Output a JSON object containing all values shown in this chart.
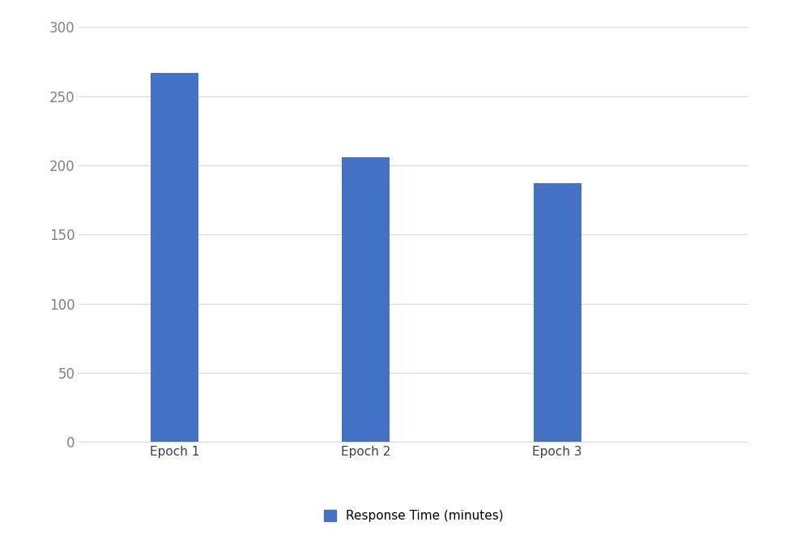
{
  "categories": [
    "Epoch 1",
    "Epoch 2",
    "Epoch 3"
  ],
  "values": [
    267,
    206,
    187
  ],
  "bar_color": "#4472C4",
  "ylim": [
    0,
    300
  ],
  "yticks": [
    0,
    50,
    100,
    150,
    200,
    250,
    300
  ],
  "legend_label": "Response Time (minutes)",
  "background_color": "#ffffff",
  "grid_color": "#d9d9d9",
  "tick_fontsize": 12,
  "xlabel_fontsize": 11,
  "legend_fontsize": 11,
  "bar_width": 0.25,
  "tick_color": "#808080",
  "label_color": "#404040"
}
